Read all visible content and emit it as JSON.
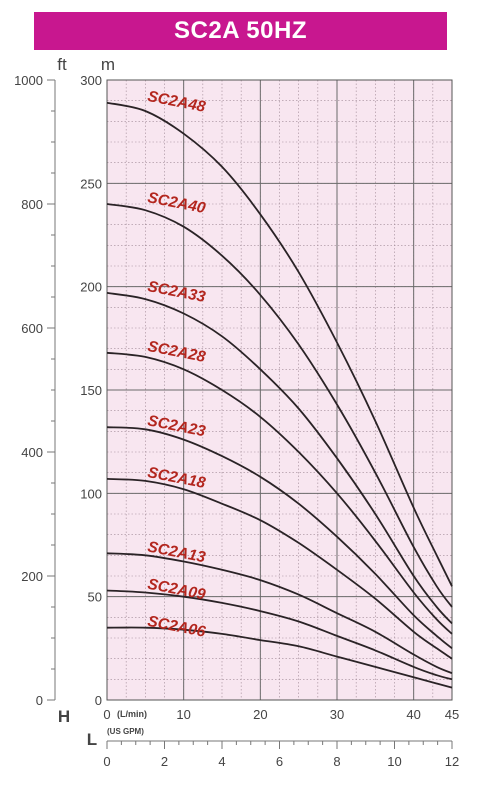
{
  "title": "SC2A 50HZ",
  "colors": {
    "title_bg": "#c8178f",
    "plot_bg": "#f8e6f0",
    "grid": "#6a6a6a",
    "curve": "#2a2326",
    "label": "#b3261e"
  },
  "chart_data": {
    "type": "line",
    "title": "SC2A 50HZ",
    "x_axis": {
      "label": "(L/min)",
      "range": [
        0,
        45
      ],
      "ticks": [
        0,
        10,
        20,
        30,
        40,
        45
      ],
      "tick_labels": [
        "0",
        "10",
        "20",
        "30",
        "40",
        "45"
      ]
    },
    "x2_axis": {
      "letter": "L",
      "label": "(US GPM)",
      "range": [
        0,
        12
      ],
      "ticks": [
        0,
        2,
        4,
        6,
        8,
        10,
        12
      ],
      "tick_labels": [
        "0",
        "2",
        "4",
        "6",
        "8",
        "10",
        "12"
      ]
    },
    "y_axis": {
      "unit": "m",
      "letter": "H",
      "range": [
        0,
        300
      ],
      "ticks": [
        0,
        50,
        100,
        150,
        200,
        250,
        300
      ],
      "tick_labels": [
        "0",
        "50",
        "100",
        "150",
        "200",
        "250",
        "300"
      ]
    },
    "y2_axis": {
      "unit": "ft",
      "range": [
        0,
        1000
      ],
      "ticks": [
        0,
        200,
        400,
        600,
        800,
        1000
      ],
      "tick_labels": [
        "0",
        "200",
        "400",
        "600",
        "800",
        "1000"
      ]
    },
    "grid": true,
    "series": [
      {
        "name": "SC2A48",
        "x": [
          0,
          5,
          10,
          15,
          20,
          25,
          30,
          35,
          40,
          43,
          45
        ],
        "y": [
          289,
          285,
          274,
          258,
          235,
          207,
          173,
          135,
          93,
          70,
          55
        ]
      },
      {
        "name": "SC2A40",
        "x": [
          0,
          5,
          10,
          15,
          20,
          25,
          30,
          35,
          40,
          43,
          45
        ],
        "y": [
          240,
          237,
          229,
          215,
          196,
          172,
          143,
          110,
          74,
          55,
          45
        ]
      },
      {
        "name": "SC2A33",
        "x": [
          0,
          5,
          10,
          15,
          20,
          25,
          30,
          35,
          40,
          43,
          45
        ],
        "y": [
          197,
          194,
          187,
          176,
          160,
          141,
          117,
          90,
          60,
          45,
          37
        ]
      },
      {
        "name": "SC2A28",
        "x": [
          0,
          5,
          10,
          15,
          20,
          25,
          30,
          35,
          40,
          43,
          45
        ],
        "y": [
          168,
          166,
          160,
          150,
          137,
          120,
          100,
          77,
          52,
          39,
          32
        ]
      },
      {
        "name": "SC2A23",
        "x": [
          0,
          5,
          10,
          15,
          20,
          25,
          30,
          35,
          40,
          43,
          45
        ],
        "y": [
          132,
          131,
          126,
          118,
          108,
          95,
          79,
          61,
          41,
          31,
          25
        ]
      },
      {
        "name": "SC2A18",
        "x": [
          0,
          5,
          10,
          15,
          20,
          25,
          30,
          35,
          40,
          43,
          45
        ],
        "y": [
          107,
          106,
          102,
          95,
          87,
          76,
          63,
          49,
          33,
          25,
          20
        ]
      },
      {
        "name": "SC2A13",
        "x": [
          0,
          5,
          10,
          15,
          20,
          25,
          30,
          35,
          40,
          43,
          45
        ],
        "y": [
          71,
          70,
          67,
          63,
          58,
          51,
          42,
          33,
          22,
          16,
          13
        ]
      },
      {
        "name": "SC2A09",
        "x": [
          0,
          5,
          10,
          15,
          20,
          25,
          30,
          35,
          40,
          43,
          45
        ],
        "y": [
          53,
          52,
          50,
          47,
          43,
          38,
          31,
          24,
          16,
          12,
          10
        ]
      },
      {
        "name": "SC2A06",
        "x": [
          0,
          5,
          10,
          15,
          20,
          25,
          30,
          35,
          40,
          43,
          45
        ],
        "y": [
          35,
          35,
          34,
          32,
          29,
          26,
          21,
          16,
          11,
          8,
          6
        ]
      }
    ]
  }
}
